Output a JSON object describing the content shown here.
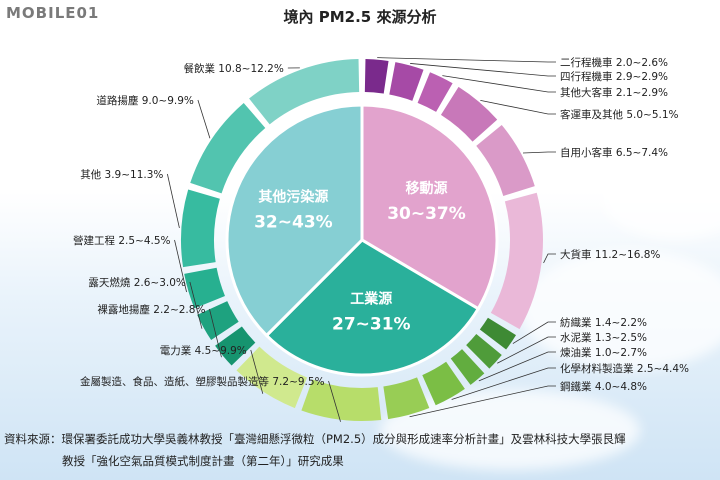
{
  "brand": {
    "logo_text": "MOBILE01"
  },
  "chart_data": {
    "type": "pie",
    "title": "境內 PM2.5 來源分析",
    "inner": [
      {
        "name": "其他污染源",
        "range": "32~43%",
        "min": 32,
        "max": 43,
        "color": "#86cfd3"
      },
      {
        "name": "移動源",
        "range": "30~37%",
        "min": 30,
        "max": 37,
        "color": "#e2a3cd"
      },
      {
        "name": "工業源",
        "range": "27~31%",
        "min": 27,
        "max": 31,
        "color": "#2ab09b"
      }
    ],
    "outer": [
      {
        "label": "二行程機車",
        "range": "2.0~2.6%",
        "min": 2.0,
        "max": 2.6,
        "group": "移動源",
        "color": "#7a2a8c"
      },
      {
        "label": "四行程機車",
        "range": "2.9~2.9%",
        "min": 2.9,
        "max": 2.9,
        "group": "移動源",
        "color": "#a64aa6"
      },
      {
        "label": "其他大客車",
        "range": "2.1~2.9%",
        "min": 2.1,
        "max": 2.9,
        "group": "移動源",
        "color": "#bb60b2"
      },
      {
        "label": "客運車及其他",
        "range": "5.0~5.1%",
        "min": 5.0,
        "max": 5.1,
        "group": "移動源",
        "color": "#c878b9"
      },
      {
        "label": "自用小客車",
        "range": "6.5~7.4%",
        "min": 6.5,
        "max": 7.4,
        "group": "移動源",
        "color": "#da9ac8"
      },
      {
        "label": "大貨車",
        "range": "11.2~16.8%",
        "min": 11.2,
        "max": 16.8,
        "group": "移動源",
        "color": "#eab8d8"
      },
      {
        "label": "紡織業",
        "range": "1.4~2.2%",
        "min": 1.4,
        "max": 2.2,
        "group": "工業源",
        "color": "#3e8a34"
      },
      {
        "label": "水泥業",
        "range": "1.3~2.5%",
        "min": 1.3,
        "max": 2.5,
        "group": "工業源",
        "color": "#4f9c3a"
      },
      {
        "label": "煉油業",
        "range": "1.0~2.7%",
        "min": 1.0,
        "max": 2.7,
        "group": "工業源",
        "color": "#62ad3f"
      },
      {
        "label": "化學材料製造業",
        "range": "2.5~4.4%",
        "min": 2.5,
        "max": 4.4,
        "group": "工業源",
        "color": "#7bbe45"
      },
      {
        "label": "鋼鐵業",
        "range": "4.0~4.8%",
        "min": 4.0,
        "max": 4.8,
        "group": "工業源",
        "color": "#98cd55"
      },
      {
        "label": "金屬製造、食品、造紙、塑膠製品製造等",
        "range": "7.2~9.5%",
        "min": 7.2,
        "max": 9.5,
        "group": "工業源",
        "color": "#b7dd6a"
      },
      {
        "label": "電力業",
        "range": "4.5~9.9%",
        "min": 4.5,
        "max": 9.9,
        "group": "工業源",
        "color": "#d0e98e"
      },
      {
        "label": "裸露地揚塵",
        "range": "2.2~2.8%",
        "min": 2.2,
        "max": 2.8,
        "group": "其他污染源",
        "color": "#16946f"
      },
      {
        "label": "露天燃燒",
        "range": "2.6~3.0%",
        "min": 2.6,
        "max": 3.0,
        "group": "其他污染源",
        "color": "#1ea27f"
      },
      {
        "label": "營建工程",
        "range": "2.5~4.5%",
        "min": 2.5,
        "max": 4.5,
        "group": "其他污染源",
        "color": "#27b090"
      },
      {
        "label": "其他",
        "range": "3.9~11.3%",
        "min": 3.9,
        "max": 11.3,
        "group": "其他污染源",
        "color": "#37bba0"
      },
      {
        "label": "道路揚塵",
        "range": "9.0~9.9%",
        "min": 9.0,
        "max": 9.9,
        "group": "其他污染源",
        "color": "#52c4af"
      },
      {
        "label": "餐飲業",
        "range": "10.8~12.2%",
        "min": 10.8,
        "max": 12.2,
        "group": "其他污染源",
        "color": "#7fd2c6"
      }
    ]
  },
  "source": {
    "line1": "資料來源：環保署委託成功大學吳義林教授「臺灣細懸浮微粒（PM2.5）成分與形成速率分析計畫」及雲林科技大學張艮輝",
    "line2": "教授「強化空氣品質模式制度計畫（第二年）」研究成果"
  }
}
